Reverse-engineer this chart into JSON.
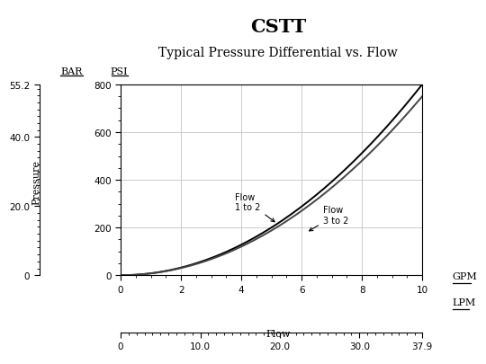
{
  "title": "CSTT",
  "subtitle": "Typical Pressure Differential vs. Flow",
  "xlabel": "Flow",
  "ylabel": "Pressure",
  "bar_label": "BAR",
  "psi_label": "PSI",
  "gpm_label": "GPM",
  "lpm_label": "LPM",
  "psi_ylim": [
    0,
    800
  ],
  "bar_ylim": [
    0,
    55.2
  ],
  "gpm_xlim": [
    0,
    10
  ],
  "lpm_xlim": [
    0,
    37.9
  ],
  "psi_yticks": [
    0,
    200,
    400,
    600,
    800
  ],
  "bar_yticks": [
    0,
    20.0,
    40.0,
    55.2
  ],
  "gpm_xticks": [
    0,
    2,
    4,
    6,
    8,
    10
  ],
  "lpm_xticks": [
    0,
    10.0,
    20.0,
    30.0,
    37.9
  ],
  "annotation1": "Flow\n1 to 2",
  "annotation2": "Flow\n3 to 2",
  "k1": 8.0,
  "k2": 7.5,
  "grid_color": "#cccccc",
  "line_color1": "#000000",
  "line_color2": "#444444",
  "bg_color": "#ffffff",
  "title_fontsize": 15,
  "subtitle_fontsize": 10,
  "label_fontsize": 8,
  "tick_fontsize": 7.5,
  "header_fontsize": 8
}
